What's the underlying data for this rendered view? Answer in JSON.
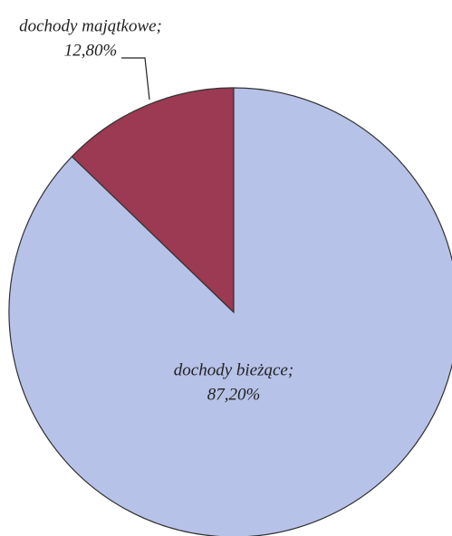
{
  "chart_data": {
    "type": "pie",
    "categories": [
      "dochody majątkowe;",
      "dochody bieżące;"
    ],
    "values": [
      12.8,
      87.2
    ],
    "value_labels": [
      "12,80%",
      "87,20%"
    ],
    "colors": [
      "#9b3a52",
      "#b7c2e8"
    ]
  }
}
